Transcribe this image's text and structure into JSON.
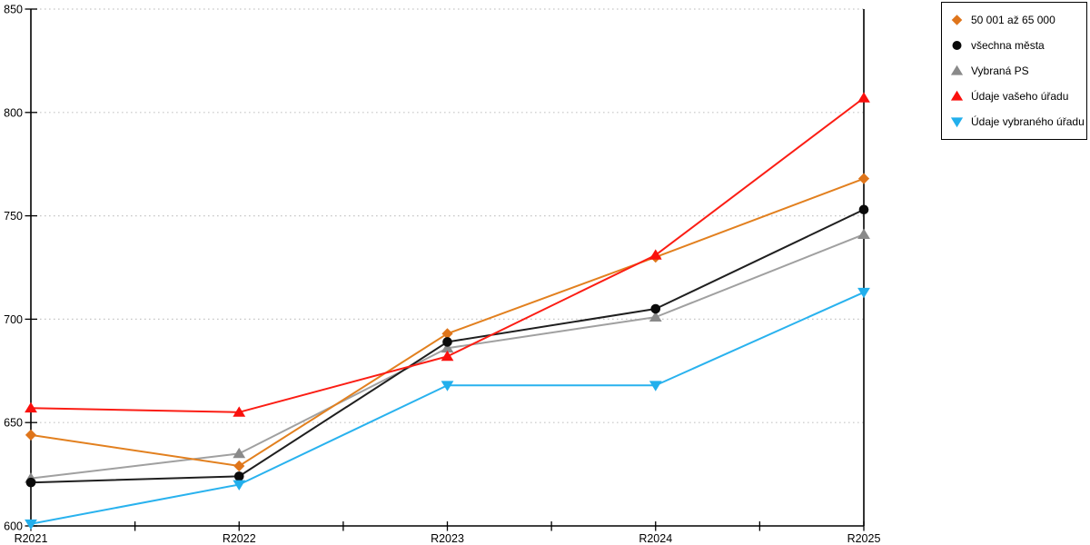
{
  "chart_data": {
    "type": "line",
    "categories": [
      "R2021",
      "R2022",
      "R2023",
      "R2024",
      "R2025"
    ],
    "series": [
      {
        "name": "50 001 až 65 000",
        "marker": "diamond",
        "color": "#DF751B",
        "line_color": "#E2801F",
        "values": [
          644,
          629,
          693,
          730,
          768
        ]
      },
      {
        "name": "všechna města",
        "marker": "circle",
        "color": "#0A0A0A",
        "line_color": "#1F1F1F",
        "values": [
          621,
          624,
          689,
          705,
          753
        ]
      },
      {
        "name": "Vybraná PS",
        "marker": "triangle-up",
        "color": "#8A8A8A",
        "line_color": "#A0A0A0",
        "values": [
          623,
          635,
          686,
          701,
          741
        ]
      },
      {
        "name": "Údaje vašeho úřadu",
        "marker": "triangle-up",
        "color": "#FA100D",
        "line_color": "#FB1D14",
        "values": [
          657,
          655,
          682,
          731,
          807
        ]
      },
      {
        "name": "Údaje vybraného úřadu",
        "marker": "triangle-down",
        "color": "#22AFEC",
        "line_color": "#29B2EE",
        "values": [
          601,
          620,
          668,
          668,
          713
        ]
      }
    ],
    "ylim": [
      600,
      850
    ],
    "ytick_step": 50,
    "yticks": [
      "600",
      "650",
      "700",
      "750",
      "800",
      "850"
    ],
    "xlabel": "",
    "ylabel": "",
    "title": "",
    "grid": "horizontal-dotted",
    "grid_color": "#C6C6C6",
    "axis_color": "#000000",
    "legend_position": "top-right",
    "z_order": [
      2,
      0,
      1,
      3,
      4
    ]
  }
}
